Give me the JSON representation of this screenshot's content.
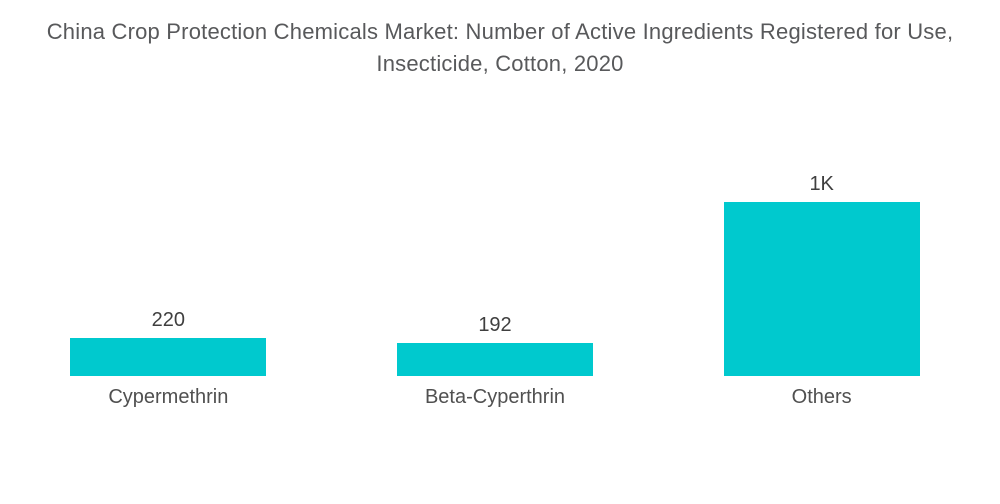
{
  "header": {
    "title_line1": "China Crop Protection Chemicals Market: Number of Active Ingredients Registered for Use,",
    "title_line2": "Insecticide, Cotton, 2020"
  },
  "chart_data": {
    "type": "bar",
    "title": "China Crop Protection Chemicals Market: Number of Active Ingredients Registered for Use, Insecticide, Cotton, 2020",
    "categories": [
      "Cypermethrin",
      "Beta-Cyperthrin",
      "Others"
    ],
    "values": [
      220,
      192,
      1000
    ],
    "value_labels": [
      "220",
      "192",
      "1K"
    ],
    "xlabel": "",
    "ylabel": "",
    "ylim": [
      0,
      1080
    ],
    "grid": false,
    "legend": false,
    "axes_visible": false,
    "orientation": "vertical",
    "colors": {
      "bar": "#00c9ce",
      "title_text": "#58595b",
      "value_label_text": "#3f3f3f",
      "category_label_text": "#505050",
      "background": "#ffffff"
    }
  }
}
